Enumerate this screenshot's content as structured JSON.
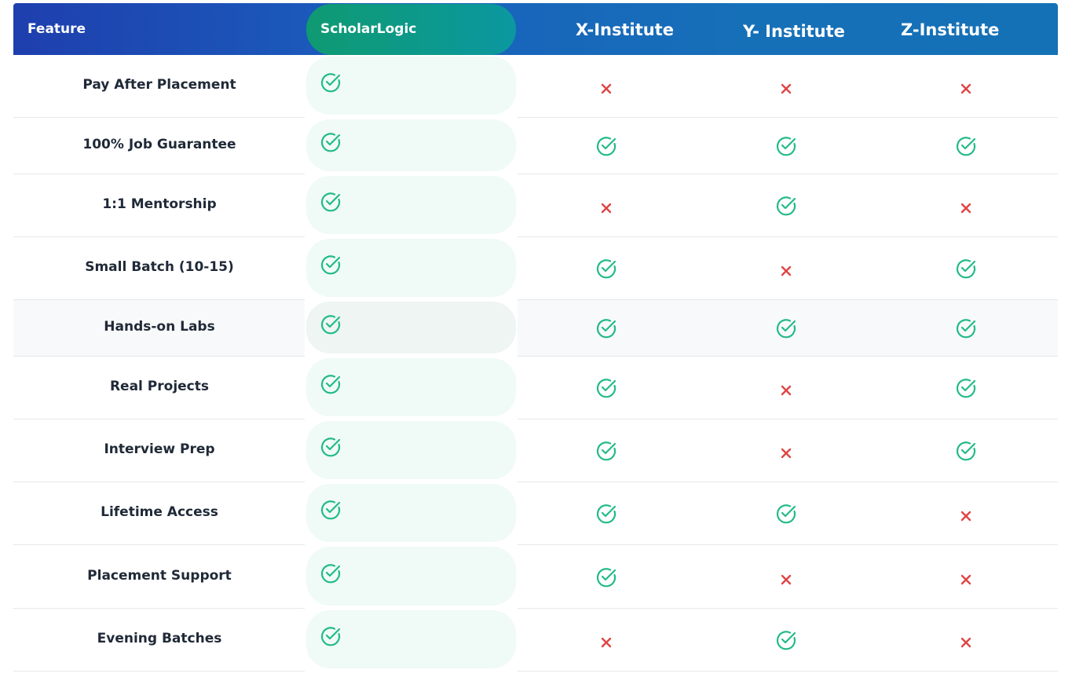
{
  "header": {
    "columns": [
      "Feature",
      "ScholarLogic",
      "X-Institute",
      "Y- Institute",
      "Z-Institute"
    ]
  },
  "rows": [
    {
      "feature": "Pay After Placement",
      "values": [
        true,
        false,
        false,
        false
      ]
    },
    {
      "feature": "100% Job Guarantee",
      "values": [
        true,
        true,
        true,
        true
      ]
    },
    {
      "feature": "1:1 Mentorship",
      "values": [
        true,
        false,
        true,
        false
      ]
    },
    {
      "feature": "Small Batch (10-15)",
      "values": [
        true,
        true,
        false,
        true
      ]
    },
    {
      "feature": "Hands-on Labs",
      "values": [
        true,
        true,
        true,
        true
      ]
    },
    {
      "feature": "Real Projects",
      "values": [
        true,
        true,
        false,
        true
      ]
    },
    {
      "feature": "Interview Prep",
      "values": [
        true,
        true,
        false,
        true
      ]
    },
    {
      "feature": "Lifetime Access",
      "values": [
        true,
        true,
        true,
        false
      ]
    },
    {
      "feature": "Placement Support",
      "values": [
        true,
        true,
        false,
        false
      ]
    },
    {
      "feature": "Evening Batches",
      "values": [
        true,
        false,
        true,
        false
      ]
    }
  ]
}
